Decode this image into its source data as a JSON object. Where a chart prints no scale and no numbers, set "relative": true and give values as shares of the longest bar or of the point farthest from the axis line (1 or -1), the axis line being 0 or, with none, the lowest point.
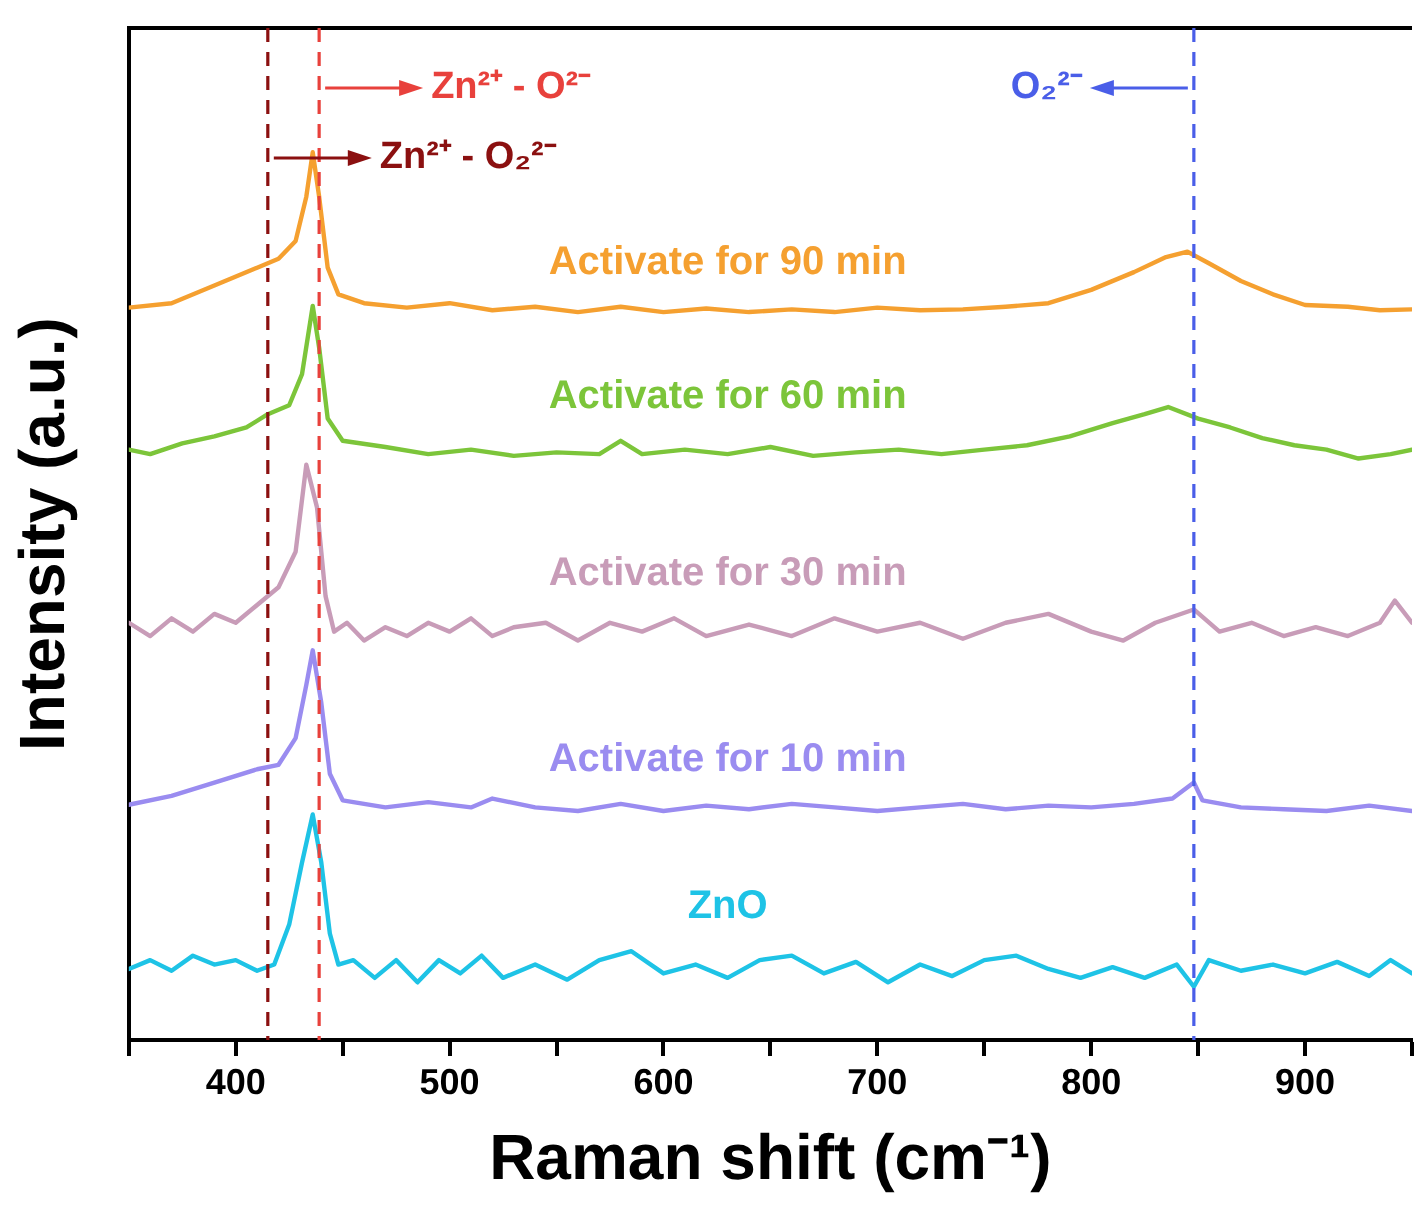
{
  "chart_data": {
    "type": "line",
    "relative": true,
    "xlabel": "Raman shift (cm⁻¹)",
    "ylabel": "Intensity (a.u.)",
    "xlim": [
      350,
      950
    ],
    "xticks": [
      {
        "value": 350,
        "label": null
      },
      400,
      {
        "value": 450,
        "label": null
      },
      500,
      {
        "value": 550,
        "label": null
      },
      600,
      {
        "value": 650,
        "label": null
      },
      700,
      {
        "value": 750,
        "label": null
      },
      800,
      {
        "value": 850,
        "label": null
      },
      900,
      {
        "value": 950,
        "label": null
      }
    ],
    "grid": false,
    "legend": false,
    "marker": "none",
    "line_style": "solid",
    "ref_lines": [
      {
        "axis": "x",
        "value": 439,
        "label": "Zn²⁺ - O²⁻",
        "color": "#e8413c",
        "line_style": "dashed"
      },
      {
        "axis": "x",
        "value": 415,
        "label": "Zn²⁺ - O₂²⁻",
        "color": "#8b1010",
        "line_style": "dashed"
      },
      {
        "axis": "x",
        "value": 848,
        "label": "O₂²⁻",
        "color": "#4a5ee8",
        "line_style": "dashed"
      }
    ],
    "series": [
      {
        "name": "ZnO",
        "color": "#1ec3e6",
        "x": [
          350,
          360,
          370,
          380,
          390,
          400,
          410,
          418,
          425,
          431,
          436,
          440,
          444,
          448,
          455,
          465,
          475,
          485,
          495,
          505,
          515,
          525,
          540,
          555,
          570,
          585,
          600,
          615,
          630,
          645,
          660,
          675,
          690,
          705,
          720,
          735,
          750,
          765,
          780,
          795,
          810,
          825,
          840,
          848,
          855,
          870,
          885,
          900,
          915,
          930,
          940,
          950
        ],
        "values": [
          0.08,
          0.09,
          0.078,
          0.095,
          0.085,
          0.09,
          0.078,
          0.085,
          0.13,
          0.2,
          0.254,
          0.2,
          0.12,
          0.085,
          0.09,
          0.07,
          0.09,
          0.065,
          0.09,
          0.075,
          0.095,
          0.07,
          0.085,
          0.068,
          0.09,
          0.1,
          0.075,
          0.085,
          0.07,
          0.09,
          0.095,
          0.075,
          0.088,
          0.065,
          0.085,
          0.072,
          0.09,
          0.095,
          0.08,
          0.07,
          0.082,
          0.07,
          0.085,
          0.06,
          0.09,
          0.078,
          0.085,
          0.075,
          0.088,
          0.072,
          0.09,
          0.075
        ]
      },
      {
        "name": "Activate for 10 min",
        "color": "#9a8cf0",
        "x": [
          350,
          370,
          390,
          410,
          420,
          428,
          433,
          436,
          440,
          444,
          450,
          470,
          490,
          510,
          520,
          540,
          560,
          580,
          600,
          620,
          640,
          660,
          680,
          700,
          720,
          740,
          760,
          780,
          800,
          820,
          838,
          848,
          852,
          870,
          890,
          910,
          930,
          950
        ],
        "values": [
          0.265,
          0.275,
          0.29,
          0.305,
          0.31,
          0.34,
          0.4,
          0.439,
          0.38,
          0.3,
          0.27,
          0.262,
          0.268,
          0.262,
          0.272,
          0.262,
          0.258,
          0.266,
          0.258,
          0.264,
          0.26,
          0.266,
          0.262,
          0.258,
          0.262,
          0.266,
          0.26,
          0.264,
          0.262,
          0.266,
          0.272,
          0.29,
          0.27,
          0.262,
          0.26,
          0.258,
          0.264,
          0.258
        ]
      },
      {
        "name": "Activate for 30 min",
        "color": "#c89cb8",
        "x": [
          350,
          360,
          370,
          380,
          390,
          400,
          410,
          420,
          428,
          433,
          438,
          442,
          446,
          452,
          460,
          470,
          480,
          490,
          500,
          510,
          520,
          530,
          545,
          560,
          575,
          590,
          605,
          620,
          640,
          660,
          680,
          700,
          720,
          740,
          760,
          780,
          800,
          815,
          830,
          848,
          860,
          875,
          890,
          905,
          920,
          935,
          942,
          950
        ],
        "values": [
          0.47,
          0.455,
          0.475,
          0.46,
          0.48,
          0.47,
          0.49,
          0.51,
          0.55,
          0.648,
          0.6,
          0.5,
          0.46,
          0.47,
          0.45,
          0.465,
          0.455,
          0.47,
          0.46,
          0.475,
          0.455,
          0.465,
          0.47,
          0.45,
          0.47,
          0.46,
          0.475,
          0.455,
          0.468,
          0.455,
          0.475,
          0.46,
          0.47,
          0.452,
          0.47,
          0.48,
          0.46,
          0.45,
          0.47,
          0.485,
          0.46,
          0.47,
          0.455,
          0.465,
          0.455,
          0.47,
          0.495,
          0.47
        ]
      },
      {
        "name": "Activate for 60 min",
        "color": "#7cc53a",
        "x": [
          350,
          360,
          375,
          390,
          405,
          415,
          425,
          431,
          436,
          439,
          443,
          450,
          470,
          490,
          510,
          530,
          550,
          570,
          580,
          590,
          610,
          630,
          650,
          670,
          690,
          710,
          730,
          750,
          770,
          790,
          810,
          825,
          836,
          850,
          865,
          880,
          895,
          910,
          925,
          940,
          950
        ],
        "values": [
          0.665,
          0.66,
          0.672,
          0.68,
          0.69,
          0.705,
          0.715,
          0.75,
          0.827,
          0.78,
          0.7,
          0.675,
          0.668,
          0.66,
          0.665,
          0.658,
          0.662,
          0.66,
          0.675,
          0.66,
          0.665,
          0.66,
          0.668,
          0.658,
          0.662,
          0.665,
          0.66,
          0.665,
          0.67,
          0.68,
          0.695,
          0.705,
          0.713,
          0.7,
          0.69,
          0.678,
          0.67,
          0.665,
          0.655,
          0.66,
          0.665
        ]
      },
      {
        "name": "Activate for 90 min",
        "color": "#f5a030",
        "x": [
          350,
          370,
          390,
          410,
          420,
          428,
          433,
          436,
          439,
          443,
          448,
          460,
          480,
          500,
          520,
          540,
          560,
          580,
          600,
          620,
          640,
          660,
          680,
          700,
          720,
          740,
          760,
          780,
          800,
          820,
          835,
          845,
          855,
          870,
          885,
          900,
          920,
          935,
          950
        ],
        "values": [
          0.825,
          0.83,
          0.85,
          0.87,
          0.88,
          0.9,
          0.95,
          1,
          0.95,
          0.87,
          0.84,
          0.83,
          0.825,
          0.83,
          0.822,
          0.826,
          0.82,
          0.826,
          0.82,
          0.824,
          0.82,
          0.823,
          0.82,
          0.825,
          0.822,
          0.823,
          0.826,
          0.83,
          0.845,
          0.865,
          0.882,
          0.888,
          0.875,
          0.855,
          0.84,
          0.828,
          0.826,
          0.822,
          0.823
        ]
      }
    ]
  }
}
